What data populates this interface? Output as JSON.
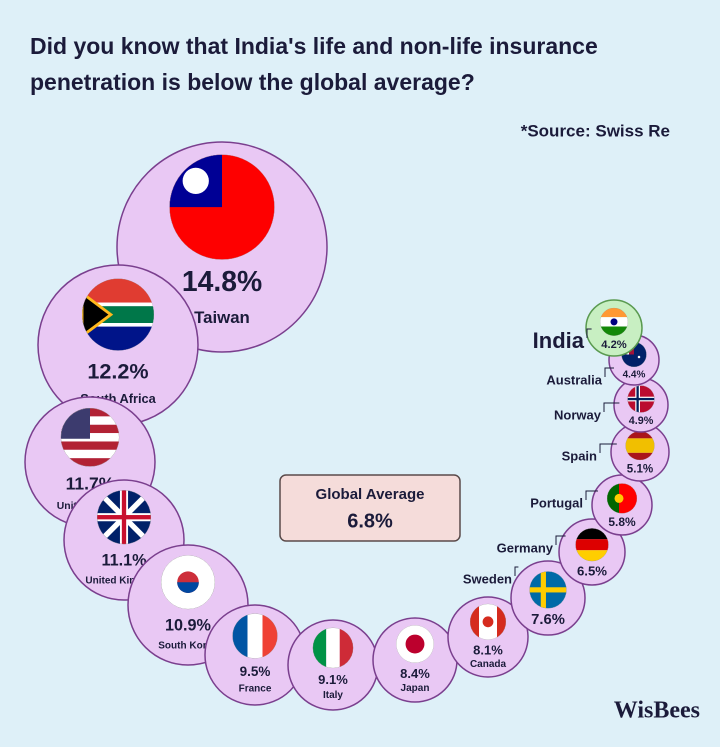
{
  "chart_data": {
    "type": "bubble",
    "title": "Did you know that India's life and non-life insurance penetration is below the global average?",
    "source": "*Source: Swiss Re",
    "categories": [
      "Taiwan",
      "South Africa",
      "United States",
      "United Kingdom",
      "South Korea",
      "France",
      "Italy",
      "Japan",
      "Canada",
      "Sweden",
      "Germany",
      "Portugal",
      "Spain",
      "Norway",
      "Australia",
      "India"
    ],
    "values": [
      14.8,
      12.2,
      11.7,
      11.1,
      10.9,
      9.5,
      9.1,
      8.4,
      8.1,
      7.6,
      6.5,
      5.8,
      5.1,
      4.9,
      4.4,
      4.2
    ],
    "value_labels": [
      "14.8%",
      "12.2%",
      "11.7%",
      "11.1%",
      "10.9%",
      "9.5%",
      "9.1%",
      "8.4%",
      "8.1%",
      "7.6%",
      "6.5%",
      "5.8%",
      "5.1%",
      "4.9%",
      "4.4%",
      "4.2%"
    ],
    "color": "#e9c8f4",
    "highlight": "India",
    "highlight_color": "#c8efc2",
    "reference": {
      "label": "Global Average",
      "value": 6.8,
      "value_label": "6.8%"
    },
    "logo": "WisBees"
  }
}
